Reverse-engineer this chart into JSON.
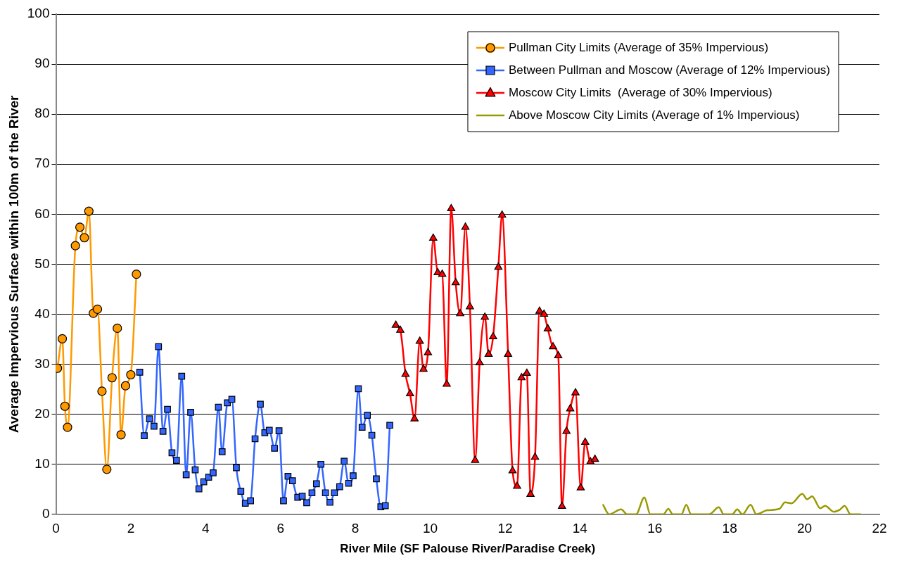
{
  "chart_data": {
    "type": "line",
    "xlabel": "River Mile (SF Palouse River/Paradise Creek)",
    "ylabel": "Average Impervious Surface within 100m of the River",
    "xlim": [
      0,
      22
    ],
    "xticks": [
      0,
      2,
      4,
      6,
      8,
      10,
      12,
      14,
      16,
      18,
      20,
      22
    ],
    "ylim": [
      0,
      100
    ],
    "yticks": [
      0,
      10,
      20,
      30,
      40,
      50,
      60,
      70,
      80,
      90,
      100
    ],
    "grid": "y",
    "legend": "top right",
    "series": [
      {
        "name": "Pullman City Limits (Average of 35% Impervious)",
        "color": "#ff9900",
        "marker": "circle",
        "x": [
          0.04,
          0.17,
          0.24,
          0.31,
          0.52,
          0.64,
          0.76,
          0.88,
          1.0,
          1.11,
          1.23,
          1.36,
          1.5,
          1.64,
          1.74,
          1.86,
          2.0,
          2.15
        ],
        "values": [
          29.2,
          35.1,
          21.6,
          17.4,
          53.7,
          57.4,
          55.3,
          60.6,
          40.2,
          41.0,
          24.6,
          9.0,
          27.3,
          37.2,
          15.9,
          25.7,
          27.9,
          48.0
        ]
      },
      {
        "name": "Between Pullman and Moscow (Average of 12% Impervious)",
        "color": "#3366ff",
        "marker": "square",
        "x": [
          2.24,
          2.36,
          2.5,
          2.62,
          2.74,
          2.86,
          2.98,
          3.1,
          3.22,
          3.36,
          3.48,
          3.6,
          3.72,
          3.82,
          3.95,
          4.08,
          4.2,
          4.34,
          4.44,
          4.58,
          4.7,
          4.82,
          4.94,
          5.06,
          5.2,
          5.32,
          5.46,
          5.58,
          5.7,
          5.84,
          5.96,
          6.08,
          6.2,
          6.32,
          6.46,
          6.58,
          6.7,
          6.84,
          6.96,
          7.08,
          7.2,
          7.32,
          7.44,
          7.58,
          7.7,
          7.82,
          7.94,
          8.08,
          8.18,
          8.32,
          8.44,
          8.56,
          8.68,
          8.8,
          8.92
        ],
        "values": [
          28.4,
          15.7,
          19.1,
          17.6,
          33.5,
          16.6,
          21.0,
          12.3,
          10.8,
          27.6,
          7.9,
          20.4,
          8.9,
          5.1,
          6.5,
          7.4,
          8.3,
          21.4,
          12.5,
          22.3,
          23.0,
          9.3,
          4.6,
          2.2,
          2.7,
          15.1,
          22.0,
          16.3,
          16.8,
          13.2,
          16.7,
          2.7,
          7.6,
          6.7,
          3.4,
          3.6,
          2.3,
          4.3,
          6.1,
          10.0,
          4.3,
          2.4,
          4.3,
          5.5,
          10.6,
          6.2,
          7.7,
          25.1,
          17.4,
          19.8,
          15.8,
          7.1,
          1.5,
          1.7,
          17.8
        ]
      },
      {
        "name": "Moscow City Limits  (Average of 30% Impervious)",
        "color": "#ff0000",
        "marker": "triangle",
        "x": [
          9.08,
          9.2,
          9.34,
          9.46,
          9.58,
          9.72,
          9.82,
          9.94,
          10.08,
          10.2,
          10.32,
          10.44,
          10.56,
          10.68,
          10.8,
          10.94,
          11.06,
          11.2,
          11.32,
          11.46,
          11.56,
          11.68,
          11.82,
          11.92,
          12.08,
          12.2,
          12.32,
          12.44,
          12.58,
          12.68,
          12.8,
          12.92,
          13.04,
          13.14,
          13.28,
          13.42,
          13.52,
          13.64,
          13.74,
          13.88,
          14.02,
          14.14,
          14.28,
          14.4
        ],
        "values": [
          37.8,
          36.8,
          28.0,
          24.1,
          19.1,
          34.6,
          29.0,
          32.3,
          55.2,
          48.3,
          48.0,
          26.0,
          61.1,
          46.3,
          40.1,
          57.4,
          41.5,
          10.8,
          30.3,
          39.4,
          32.0,
          35.5,
          49.4,
          59.8,
          32.0,
          8.7,
          5.6,
          27.3,
          28.2,
          4.0,
          11.4,
          40.6,
          40.0,
          37.1,
          33.5,
          31.7,
          1.6,
          16.6,
          21.1,
          24.3,
          5.3,
          14.4,
          10.5,
          11.0
        ]
      },
      {
        "name": "Above Moscow City Limits (Average of 1% Impervious)",
        "color": "#999900",
        "marker": "none",
        "x": [
          14.61,
          14.78,
          15.1,
          15.26,
          15.5,
          15.72,
          15.88,
          16.23,
          16.36,
          16.48,
          16.71,
          16.84,
          16.97,
          17.45,
          17.71,
          17.84,
          18.07,
          18.2,
          18.34,
          18.56,
          18.71,
          19.0,
          19.33,
          19.48,
          19.65,
          19.94,
          20.07,
          20.2,
          20.42,
          20.55,
          20.78,
          20.94,
          21.07,
          21.23,
          21.5
        ],
        "values": [
          2.0,
          0,
          1.0,
          0,
          0,
          3.4,
          0,
          0,
          1.1,
          0,
          0,
          1.9,
          0,
          0,
          1.4,
          0,
          0,
          1.0,
          0,
          1.9,
          0,
          0.8,
          1.1,
          2.4,
          2.2,
          4.1,
          3.0,
          3.6,
          1.2,
          1.7,
          0.5,
          0.9,
          1.7,
          0,
          0
        ]
      }
    ]
  }
}
